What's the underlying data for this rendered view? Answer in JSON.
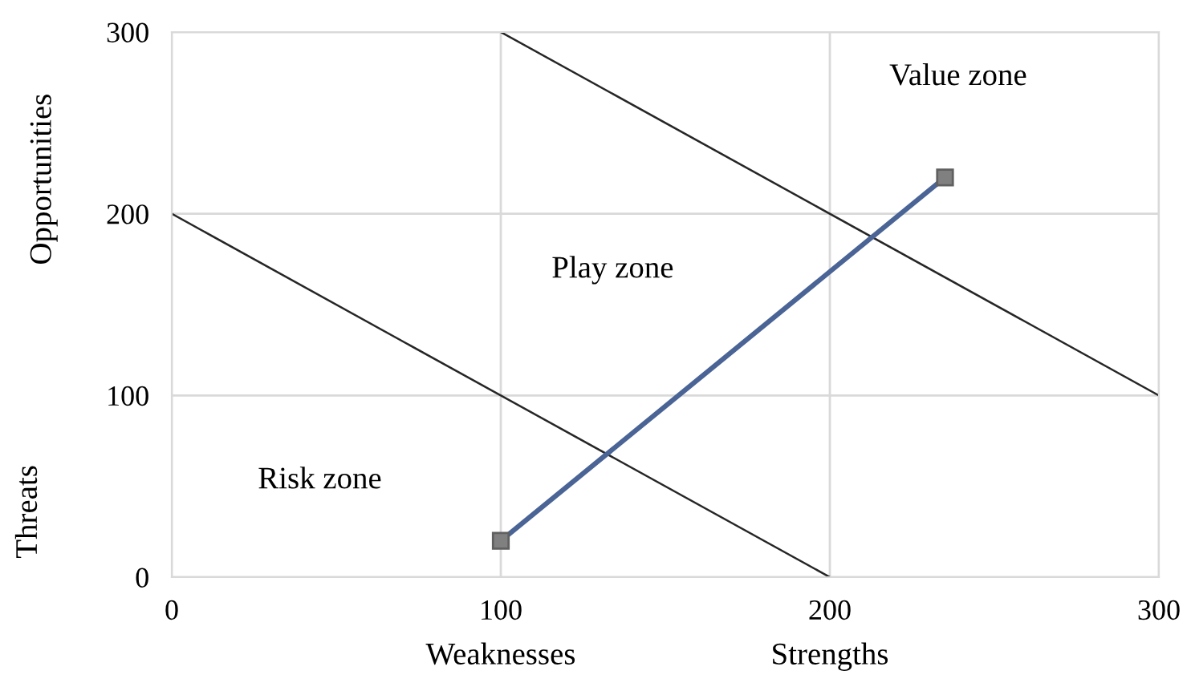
{
  "chart_data": {
    "type": "line",
    "xlabel": "Weaknesses",
    "ylabel": "Threats",
    "xlim": [
      0,
      300
    ],
    "ylim": [
      0,
      300
    ],
    "xticks": [
      0,
      100,
      200,
      300
    ],
    "yticks": [
      0,
      100,
      200,
      300
    ],
    "grid": true,
    "marker": "none",
    "line_style": "solid",
    "series": [
      {
        "x": [
          0,
          200
        ],
        "values": [
          200,
          0
        ],
        "color": "#262626"
      },
      {
        "x": [
          100,
          300
        ],
        "values": [
          300,
          100
        ],
        "color": "#262626"
      },
      {
        "x": [
          100,
          235
        ],
        "values": [
          20,
          220
        ],
        "color": "#4a6496",
        "marker": "square"
      }
    ],
    "annotations": [
      "Value zone",
      "Play zone",
      "Risk zone",
      "Strengths",
      "Opportunities"
    ]
  }
}
